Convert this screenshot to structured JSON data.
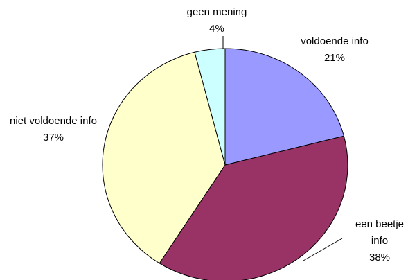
{
  "chart_data": {
    "type": "pie",
    "categories": [
      "voldoende info",
      "een beetje info",
      "niet voldoende info",
      "geen mening"
    ],
    "values": [
      21,
      38,
      37,
      4
    ],
    "value_labels": [
      "21%",
      "38%",
      "37%",
      "4%"
    ],
    "colors": [
      "#9999ff",
      "#993366",
      "#ffffcc",
      "#ccffff"
    ]
  }
}
